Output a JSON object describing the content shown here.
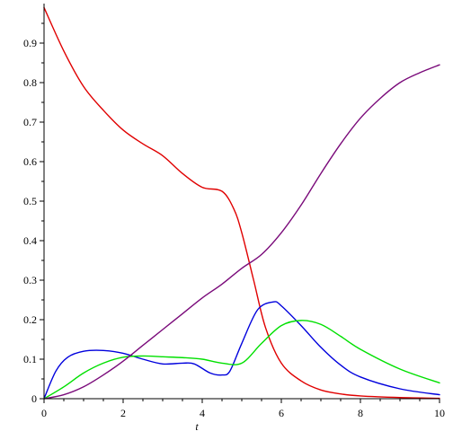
{
  "chart_data": {
    "type": "line",
    "title": "",
    "xlabel": "t",
    "ylabel": "",
    "xlim": [
      0,
      10
    ],
    "ylim": [
      0,
      1
    ],
    "x_ticks": [
      "0",
      "2",
      "4",
      "6",
      "8",
      "10"
    ],
    "x_tick_values": [
      0,
      2,
      4,
      6,
      8,
      10
    ],
    "y_ticks": [
      "0",
      "0.1",
      "0.2",
      "0.3",
      "0.4",
      "0.5",
      "0.6",
      "0.7",
      "0.8",
      "0.9"
    ],
    "y_tick_values": [
      0,
      0.1,
      0.2,
      0.3,
      0.4,
      0.5,
      0.6,
      0.7,
      0.8,
      0.9
    ],
    "grid": false,
    "legend": "none",
    "series": [
      {
        "color": "#e00000",
        "x": [
          0,
          0.5,
          1,
          1.5,
          2,
          2.5,
          3,
          3.5,
          4,
          4.5,
          4.8,
          5,
          5.3,
          5.6,
          6,
          6.5,
          7,
          7.5,
          8,
          9,
          10
        ],
        "y": [
          0.99,
          0.88,
          0.79,
          0.73,
          0.68,
          0.645,
          0.615,
          0.57,
          0.535,
          0.525,
          0.48,
          0.42,
          0.3,
          0.18,
          0.09,
          0.045,
          0.022,
          0.012,
          0.007,
          0.003,
          0.001
        ]
      },
      {
        "color": "#0000dd",
        "x": [
          0,
          0.3,
          0.6,
          1,
          1.5,
          2,
          2.5,
          3,
          3.5,
          3.8,
          4.2,
          4.5,
          4.7,
          5,
          5.4,
          5.8,
          6,
          6.5,
          7,
          7.5,
          8,
          9,
          10
        ],
        "y": [
          0,
          0.07,
          0.105,
          0.12,
          0.122,
          0.115,
          0.1,
          0.088,
          0.09,
          0.088,
          0.065,
          0.06,
          0.07,
          0.14,
          0.225,
          0.245,
          0.235,
          0.185,
          0.13,
          0.085,
          0.055,
          0.025,
          0.01
        ]
      },
      {
        "color": "#00e000",
        "x": [
          0,
          0.5,
          1,
          1.5,
          2,
          2.5,
          3,
          3.5,
          4,
          4.5,
          5,
          5.5,
          6,
          6.5,
          7,
          7.5,
          8,
          9,
          10
        ],
        "y": [
          0,
          0.03,
          0.065,
          0.09,
          0.105,
          0.108,
          0.106,
          0.104,
          0.1,
          0.09,
          0.09,
          0.14,
          0.185,
          0.198,
          0.188,
          0.158,
          0.125,
          0.075,
          0.04
        ]
      },
      {
        "color": "#7a0a7a",
        "x": [
          0,
          0.5,
          1,
          1.5,
          2,
          2.5,
          3,
          3.5,
          4,
          4.5,
          5,
          5.5,
          6,
          6.5,
          7,
          7.5,
          8,
          8.5,
          9,
          9.5,
          10
        ],
        "y": [
          0,
          0.01,
          0.03,
          0.06,
          0.095,
          0.135,
          0.175,
          0.215,
          0.255,
          0.29,
          0.33,
          0.365,
          0.42,
          0.49,
          0.57,
          0.645,
          0.71,
          0.76,
          0.8,
          0.825,
          0.845
        ]
      }
    ]
  }
}
